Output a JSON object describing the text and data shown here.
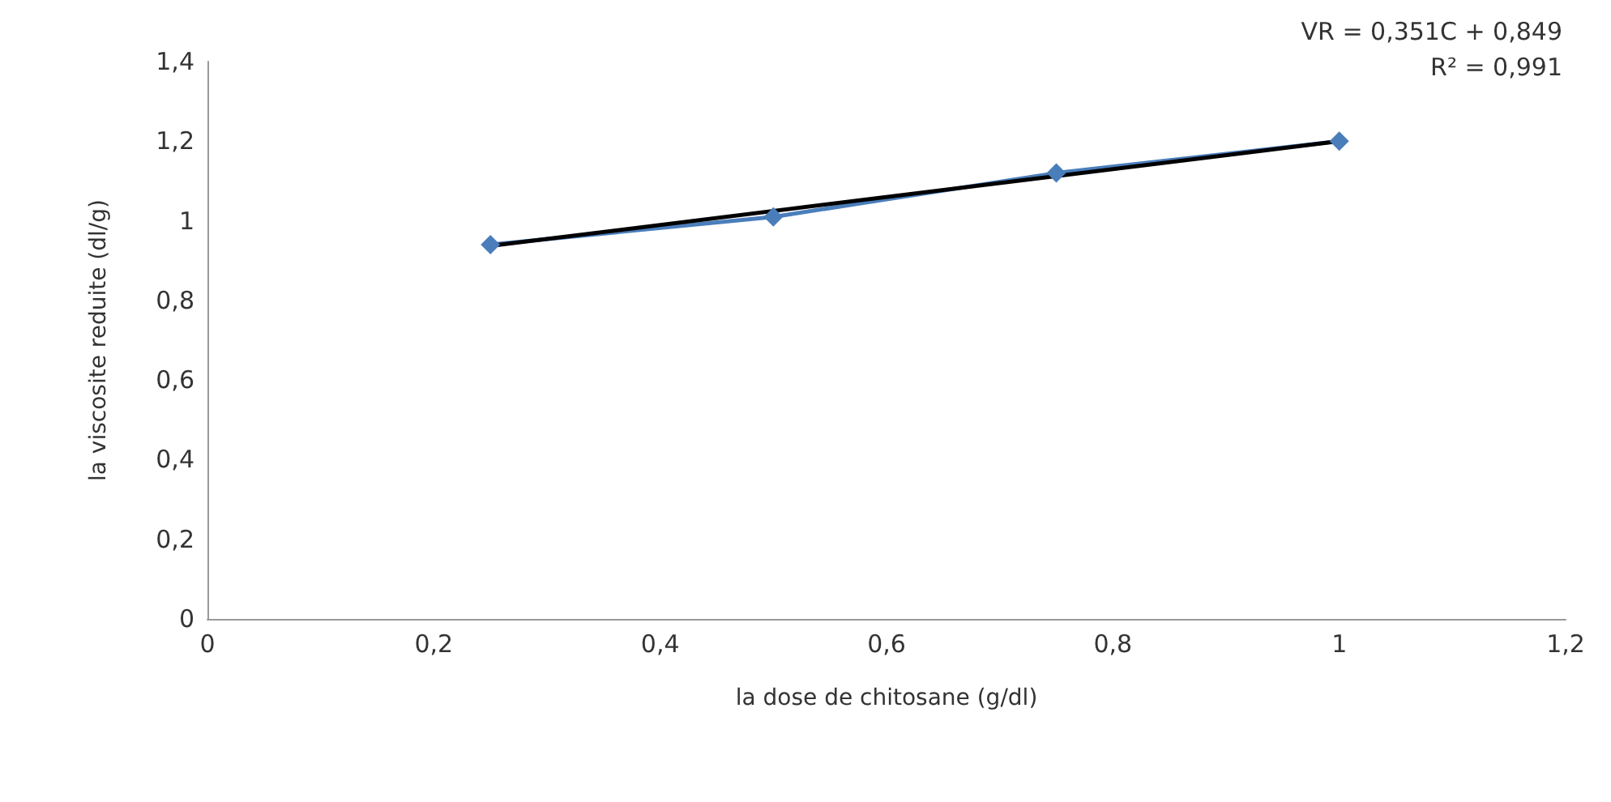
{
  "chart_data": {
    "type": "line",
    "xlabel": "la dose de chitosane (g/dl)",
    "ylabel": "la viscosite reduite (dl/g)",
    "xlim": [
      0,
      1.2
    ],
    "xticks": [
      0,
      {
        "value": 0.2,
        "label": "0,2"
      },
      {
        "value": 0.4,
        "label": "0,4"
      },
      {
        "value": 0.6,
        "label": "0,6"
      },
      {
        "value": 0.8,
        "label": "0,8"
      },
      1,
      {
        "value": 1.2,
        "label": "1,2"
      }
    ],
    "ylim": [
      0,
      1.4
    ],
    "yticks": [
      0,
      {
        "value": 0.2,
        "label": "0,2"
      },
      {
        "value": 0.4,
        "label": "0,4"
      },
      {
        "value": 0.6,
        "label": "0,6"
      },
      {
        "value": 0.8,
        "label": "0,8"
      },
      1,
      {
        "value": 1.2,
        "label": "1,2"
      },
      {
        "value": 1.4,
        "label": "1,4"
      }
    ],
    "grid": false,
    "line_style": "solid",
    "series": [
      {
        "color": "#4a7ebb",
        "marker": "diamond",
        "x": [
          0.25,
          0.5,
          0.75,
          1
        ],
        "values": [
          0.94,
          1.01,
          1.12,
          1.2
        ]
      },
      {
        "color": "#000000",
        "marker": "none",
        "x": [
          0.25,
          1
        ],
        "values": [
          0.937,
          1.2
        ]
      }
    ],
    "annotations": [
      "VR = 0,351C + 0,849",
      "R² = 0,991"
    ]
  }
}
